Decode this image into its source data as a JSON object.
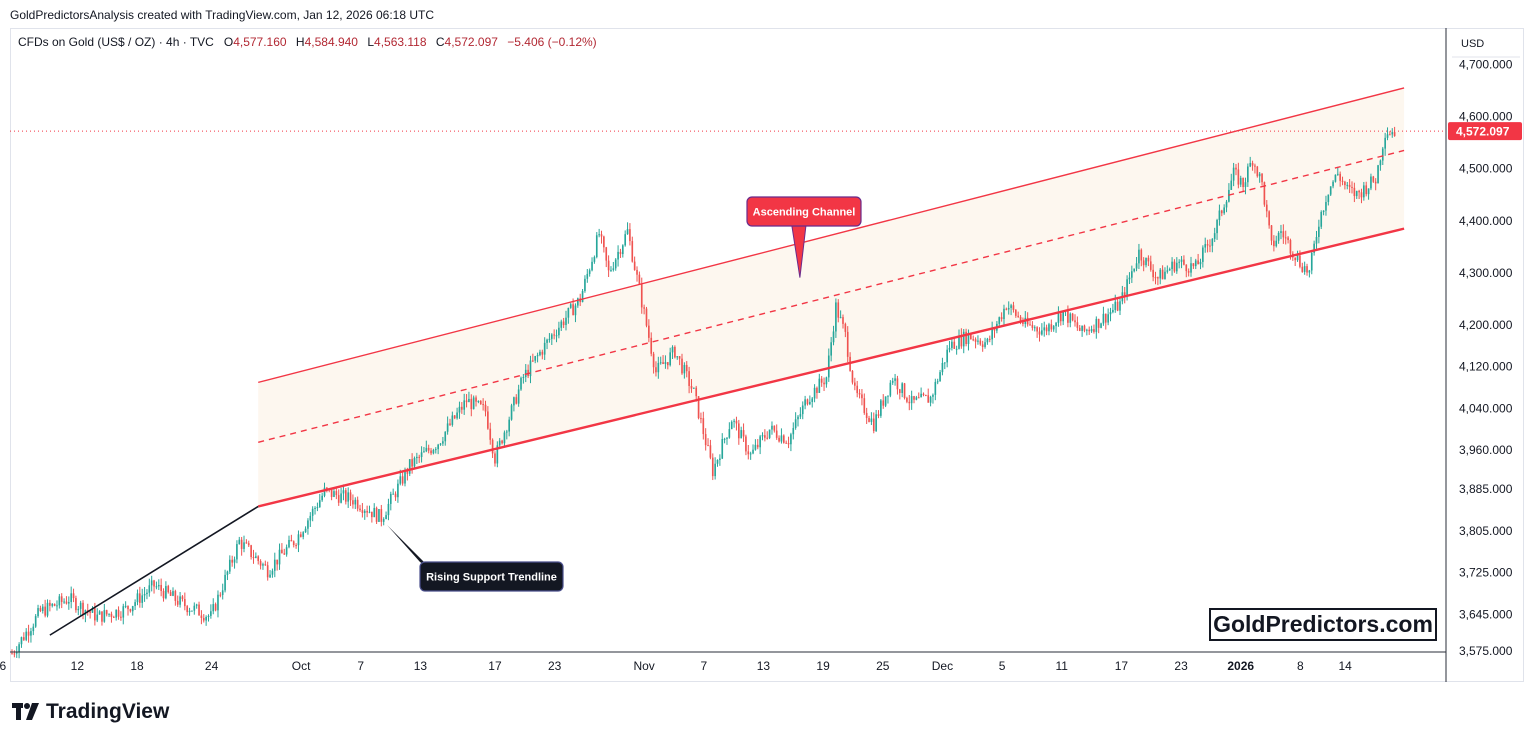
{
  "header": {
    "caption": "GoldPredictorsAnalysis created with TradingView.com, Jan 12, 2026 06:18 UTC"
  },
  "symbol": {
    "name": "CFDs on Gold (US$ / OZ) · 4h · TVC",
    "open_label": "O",
    "open": "4,577.160",
    "high_label": "H",
    "high": "4,584.940",
    "low_label": "L",
    "low": "4,563.118",
    "close_label": "C",
    "close": "4,572.097",
    "change": "−5.406 (−0.12%)"
  },
  "price_axis": {
    "currency": "USD",
    "last_price": "4,572.097",
    "last_price_color": "#f23645"
  },
  "annotations": {
    "channel_label": "Ascending Channel",
    "trendline_label": "Rising Support Trendline"
  },
  "watermark": "GoldPredictors.com",
  "brand": "TradingView",
  "colors": {
    "up": "#26a69a",
    "down": "#ef5350",
    "channel": "#f23645",
    "trendline": "#131722",
    "channel_fill": "#fdf7ef"
  },
  "chart_data": {
    "type": "candlestick",
    "title": "",
    "xlabel": "",
    "ylabel": "",
    "ylim": [
      3540,
      4770
    ],
    "x_ticks": [
      "6",
      "12",
      "18",
      "24",
      "Oct",
      "7",
      "13",
      "17",
      "23",
      "Nov",
      "7",
      "13",
      "19",
      "25",
      "Dec",
      "5",
      "11",
      "17",
      "23",
      "2026",
      "8",
      "14"
    ],
    "y_ticks": [
      "4,700.000",
      "4,600.000",
      "4,500.000",
      "4,400.000",
      "4,300.000",
      "4,200.000",
      "4,120.000",
      "4,040.000",
      "3,960.000",
      "3,885.000",
      "3,805.000",
      "3,725.000",
      "3,645.000",
      "3,575.000"
    ],
    "y_tick_values": [
      4700,
      4600,
      4500,
      4400,
      4300,
      4200,
      4120,
      4040,
      3960,
      3885,
      3805,
      3725,
      3645,
      3575
    ],
    "close_path": [
      [
        0,
        3570
      ],
      [
        3,
        3650
      ],
      [
        6,
        3675
      ],
      [
        9,
        3640
      ],
      [
        12,
        3655
      ],
      [
        15,
        3700
      ],
      [
        18,
        3665
      ],
      [
        21,
        3640
      ],
      [
        24,
        3785
      ],
      [
        27,
        3730
      ],
      [
        30,
        3790
      ],
      [
        33,
        3880
      ],
      [
        36,
        3865
      ],
      [
        39,
        3830
      ],
      [
        42,
        3930
      ],
      [
        45,
        3975
      ],
      [
        48,
        4055
      ],
      [
        50,
        4035
      ],
      [
        51,
        3945
      ],
      [
        54,
        4100
      ],
      [
        57,
        4180
      ],
      [
        60,
        4250
      ],
      [
        62,
        4375
      ],
      [
        63,
        4300
      ],
      [
        65,
        4380
      ],
      [
        66,
        4290
      ],
      [
        68,
        4110
      ],
      [
        70,
        4150
      ],
      [
        72,
        4070
      ],
      [
        74,
        3920
      ],
      [
        76,
        4020
      ],
      [
        78,
        3950
      ],
      [
        80,
        4000
      ],
      [
        82,
        3980
      ],
      [
        84,
        4060
      ],
      [
        86,
        4100
      ],
      [
        87,
        4235
      ],
      [
        88,
        4180
      ],
      [
        89,
        4070
      ],
      [
        91,
        4010
      ],
      [
        93,
        4100
      ],
      [
        95,
        4050
      ],
      [
        97,
        4060
      ],
      [
        99,
        4160
      ],
      [
        101,
        4180
      ],
      [
        103,
        4165
      ],
      [
        105,
        4240
      ],
      [
        107,
        4200
      ],
      [
        109,
        4190
      ],
      [
        111,
        4225
      ],
      [
        113,
        4185
      ],
      [
        115,
        4210
      ],
      [
        117,
        4240
      ],
      [
        119,
        4340
      ],
      [
        121,
        4290
      ],
      [
        123,
        4320
      ],
      [
        125,
        4310
      ],
      [
        127,
        4380
      ],
      [
        129,
        4490
      ],
      [
        130,
        4470
      ],
      [
        131,
        4520
      ],
      [
        132,
        4470
      ],
      [
        133,
        4350
      ],
      [
        134,
        4380
      ],
      [
        136,
        4320
      ],
      [
        137,
        4300
      ],
      [
        138,
        4400
      ],
      [
        139,
        4460
      ],
      [
        140,
        4490
      ],
      [
        141,
        4460
      ],
      [
        142,
        4450
      ],
      [
        144,
        4480
      ],
      [
        145,
        4572
      ]
    ],
    "channel": {
      "upper": [
        [
          26,
          4090
        ],
        [
          147,
          4655
        ]
      ],
      "middle": [
        [
          26,
          3975
        ],
        [
          147,
          4535
        ]
      ],
      "lower": [
        [
          26,
          3852
        ],
        [
          147,
          4385
        ]
      ]
    },
    "support_trendline": [
      [
        4,
        3605
      ],
      [
        26,
        3852
      ]
    ],
    "x_tick_positions": [
      -1,
      4,
      8,
      13,
      19,
      23,
      27,
      32,
      36,
      42,
      46,
      50,
      54,
      58,
      62,
      66,
      70,
      74,
      78,
      82,
      86,
      89
    ]
  }
}
